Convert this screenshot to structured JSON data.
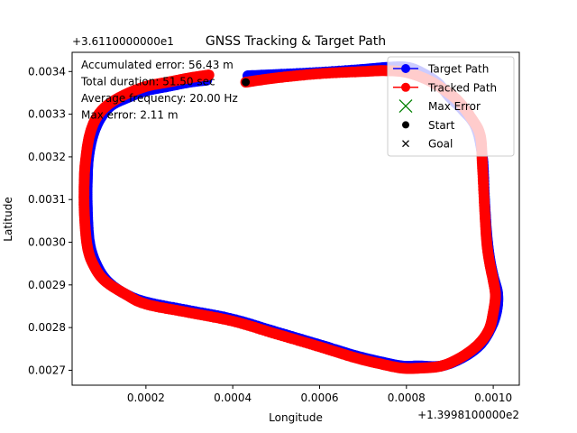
{
  "chart_data": {
    "type": "line",
    "title": "GNSS Tracking & Target Path",
    "xlabel": "Longitude",
    "ylabel": "Latitude",
    "x_offset_label": "+1.3998100000e2",
    "y_offset_label": "+3.6110000000e1",
    "xlim": [
      3e-05,
      0.00106
    ],
    "ylim": [
      0.002665,
      0.003445
    ],
    "xticks": [
      0.0002,
      0.0004,
      0.0006,
      0.0008,
      0.001
    ],
    "xtick_labels": [
      "0.0002",
      "0.0004",
      "0.0006",
      "0.0008",
      "0.0010"
    ],
    "yticks": [
      0.0027,
      0.0028,
      0.0029,
      0.003,
      0.0031,
      0.0032,
      0.0033,
      0.0034
    ],
    "ytick_labels": [
      "0.0027",
      "0.0028",
      "0.0029",
      "0.0030",
      "0.0031",
      "0.0032",
      "0.0033",
      "0.0034"
    ],
    "grid": false,
    "legend_position": "top-right",
    "annotations": [
      "Accumulated error: 56.43 m",
      "Total duration: 51.50 sec",
      "Average frequency: 20.00 Hz",
      "Max error: 2.11 m"
    ],
    "series": [
      {
        "name": "Target Path",
        "color": "#0000ff",
        "marker": "circle",
        "x": [
          0.000435,
          0.0005,
          0.0006,
          0.0007,
          0.00076,
          0.0008,
          0.00083,
          0.00087,
          0.0009,
          0.00093,
          0.00096,
          0.000975,
          0.00098,
          0.000985,
          0.000992,
          0.001,
          0.00101,
          0.001008,
          0.000995,
          0.00097,
          0.00093,
          0.00088,
          0.00083,
          0.00079,
          0.00074,
          0.00068,
          0.0006,
          0.0005,
          0.0004,
          0.0003,
          0.0002,
          0.00015,
          0.00011,
          8.5e-05,
          7e-05,
          6.5e-05,
          6.5e-05,
          6.8e-05,
          7.8e-05,
          9.5e-05,
          0.00012,
          0.00016,
          0.0002,
          0.00025,
          0.0003,
          0.00034
        ],
        "y": [
          0.00339,
          0.003393,
          0.003398,
          0.003405,
          0.00341,
          0.00341,
          0.0034,
          0.003375,
          0.00334,
          0.00331,
          0.00327,
          0.0032,
          0.0031,
          0.00302,
          0.00296,
          0.00292,
          0.00288,
          0.00284,
          0.0028,
          0.00276,
          0.00273,
          0.00271,
          0.00271,
          0.00271,
          0.00272,
          0.002735,
          0.00276,
          0.00279,
          0.00282,
          0.00284,
          0.00286,
          0.00288,
          0.00291,
          0.00295,
          0.003,
          0.00308,
          0.00315,
          0.0032,
          0.00325,
          0.00329,
          0.00332,
          0.00334,
          0.003355,
          0.003365,
          0.003375,
          0.00338
        ]
      },
      {
        "name": "Tracked Path",
        "color": "#ff0000",
        "marker": "circle",
        "x": [
          0.00043,
          0.0005,
          0.0006,
          0.0007,
          0.00075,
          0.0008,
          0.00085,
          0.00089,
          0.00092,
          0.00095,
          0.00097,
          0.000975,
          0.00098,
          0.000985,
          0.000992,
          0.001,
          0.001005,
          0.001,
          0.00099,
          0.000965,
          0.000925,
          0.00088,
          0.00083,
          0.00079,
          0.00074,
          0.00068,
          0.0006,
          0.0005,
          0.0004,
          0.0003,
          0.0002,
          0.00015,
          0.000105,
          8e-05,
          6.5e-05,
          5.8e-05,
          5.8e-05,
          6.2e-05,
          7e-05,
          8.5e-05,
          0.00011,
          0.00015,
          0.0002,
          0.00025,
          0.0003,
          0.000345
        ],
        "y": [
          0.003375,
          0.003385,
          0.003395,
          0.0034,
          0.003402,
          0.003398,
          0.00338,
          0.003355,
          0.00333,
          0.00329,
          0.00325,
          0.00318,
          0.00308,
          0.003,
          0.00295,
          0.00291,
          0.002875,
          0.002835,
          0.002795,
          0.00276,
          0.00273,
          0.00271,
          0.002705,
          0.002705,
          0.002715,
          0.00273,
          0.002755,
          0.002785,
          0.002815,
          0.002835,
          0.002855,
          0.00288,
          0.00291,
          0.002945,
          0.00299,
          0.00307,
          0.00315,
          0.0032,
          0.00325,
          0.00329,
          0.00332,
          0.003345,
          0.003365,
          0.003375,
          0.003385,
          0.003392
        ]
      }
    ],
    "special_points": [
      {
        "name": "Max Error",
        "marker": "x",
        "color": "#008000"
      },
      {
        "name": "Start",
        "marker": "dot",
        "color": "#000000",
        "x": 0.00043,
        "y": 0.003375
      },
      {
        "name": "Goal",
        "marker": "x",
        "color": "#000000"
      }
    ]
  }
}
